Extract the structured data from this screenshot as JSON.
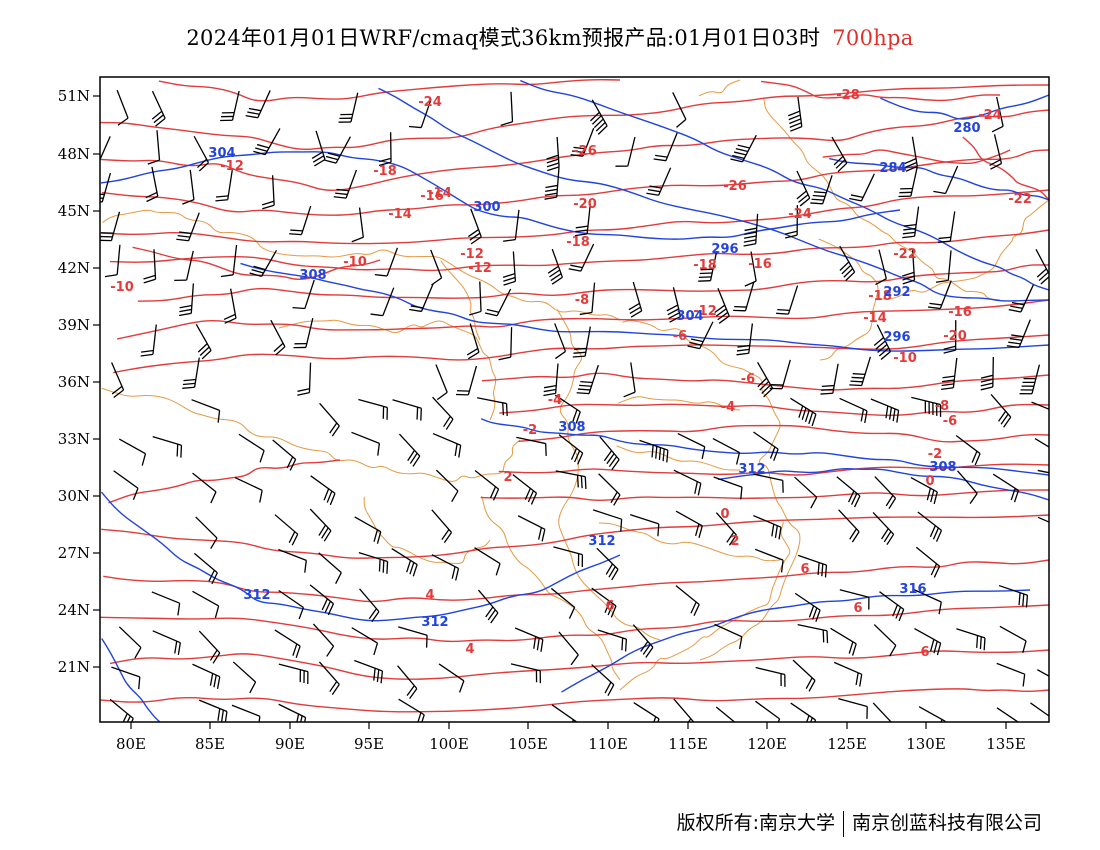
{
  "title": {
    "main": "2024年01月01日WRF/cmaq模式36km预报产品:01月01日03时",
    "level": "700hpa"
  },
  "colors": {
    "temperature": "#e23b3b",
    "height": "#2244dd",
    "border": "#e59a45",
    "wind": "#000000"
  },
  "lon_ticks": [
    "80E",
    "85E",
    "90E",
    "95E",
    "100E",
    "105E",
    "110E",
    "115E",
    "120E",
    "125E",
    "130E",
    "135E"
  ],
  "lat_ticks": [
    "51N",
    "48N",
    "45N",
    "42N",
    "39N",
    "36N",
    "33N",
    "30N",
    "27N",
    "24N",
    "21N"
  ],
  "temp_labels": [
    "-24",
    "-26",
    "-28",
    "-24",
    "-22",
    "-26",
    "-24",
    "-20",
    "-22",
    "-18",
    "-16",
    "-14",
    "-12",
    "-12",
    "-10",
    "-10",
    "-8",
    "-6",
    "-6",
    "-4",
    "-4",
    "-2",
    "-2",
    "0",
    "0",
    "2",
    "2",
    "4",
    "4",
    "6",
    "6",
    "6",
    "6",
    "-18",
    "-16",
    "-14",
    "-12",
    "-18",
    "-16",
    "-20",
    "-18",
    "-14",
    "-12",
    "-10",
    "-8",
    "-6"
  ],
  "height_labels": [
    "304",
    "300",
    "308",
    "296",
    "284",
    "280",
    "292",
    "296",
    "304",
    "308",
    "308",
    "312",
    "312",
    "312",
    "312",
    "316"
  ],
  "footer": {
    "left": "版权所有:南京大学",
    "right": "南京创蓝科技有限公司"
  }
}
